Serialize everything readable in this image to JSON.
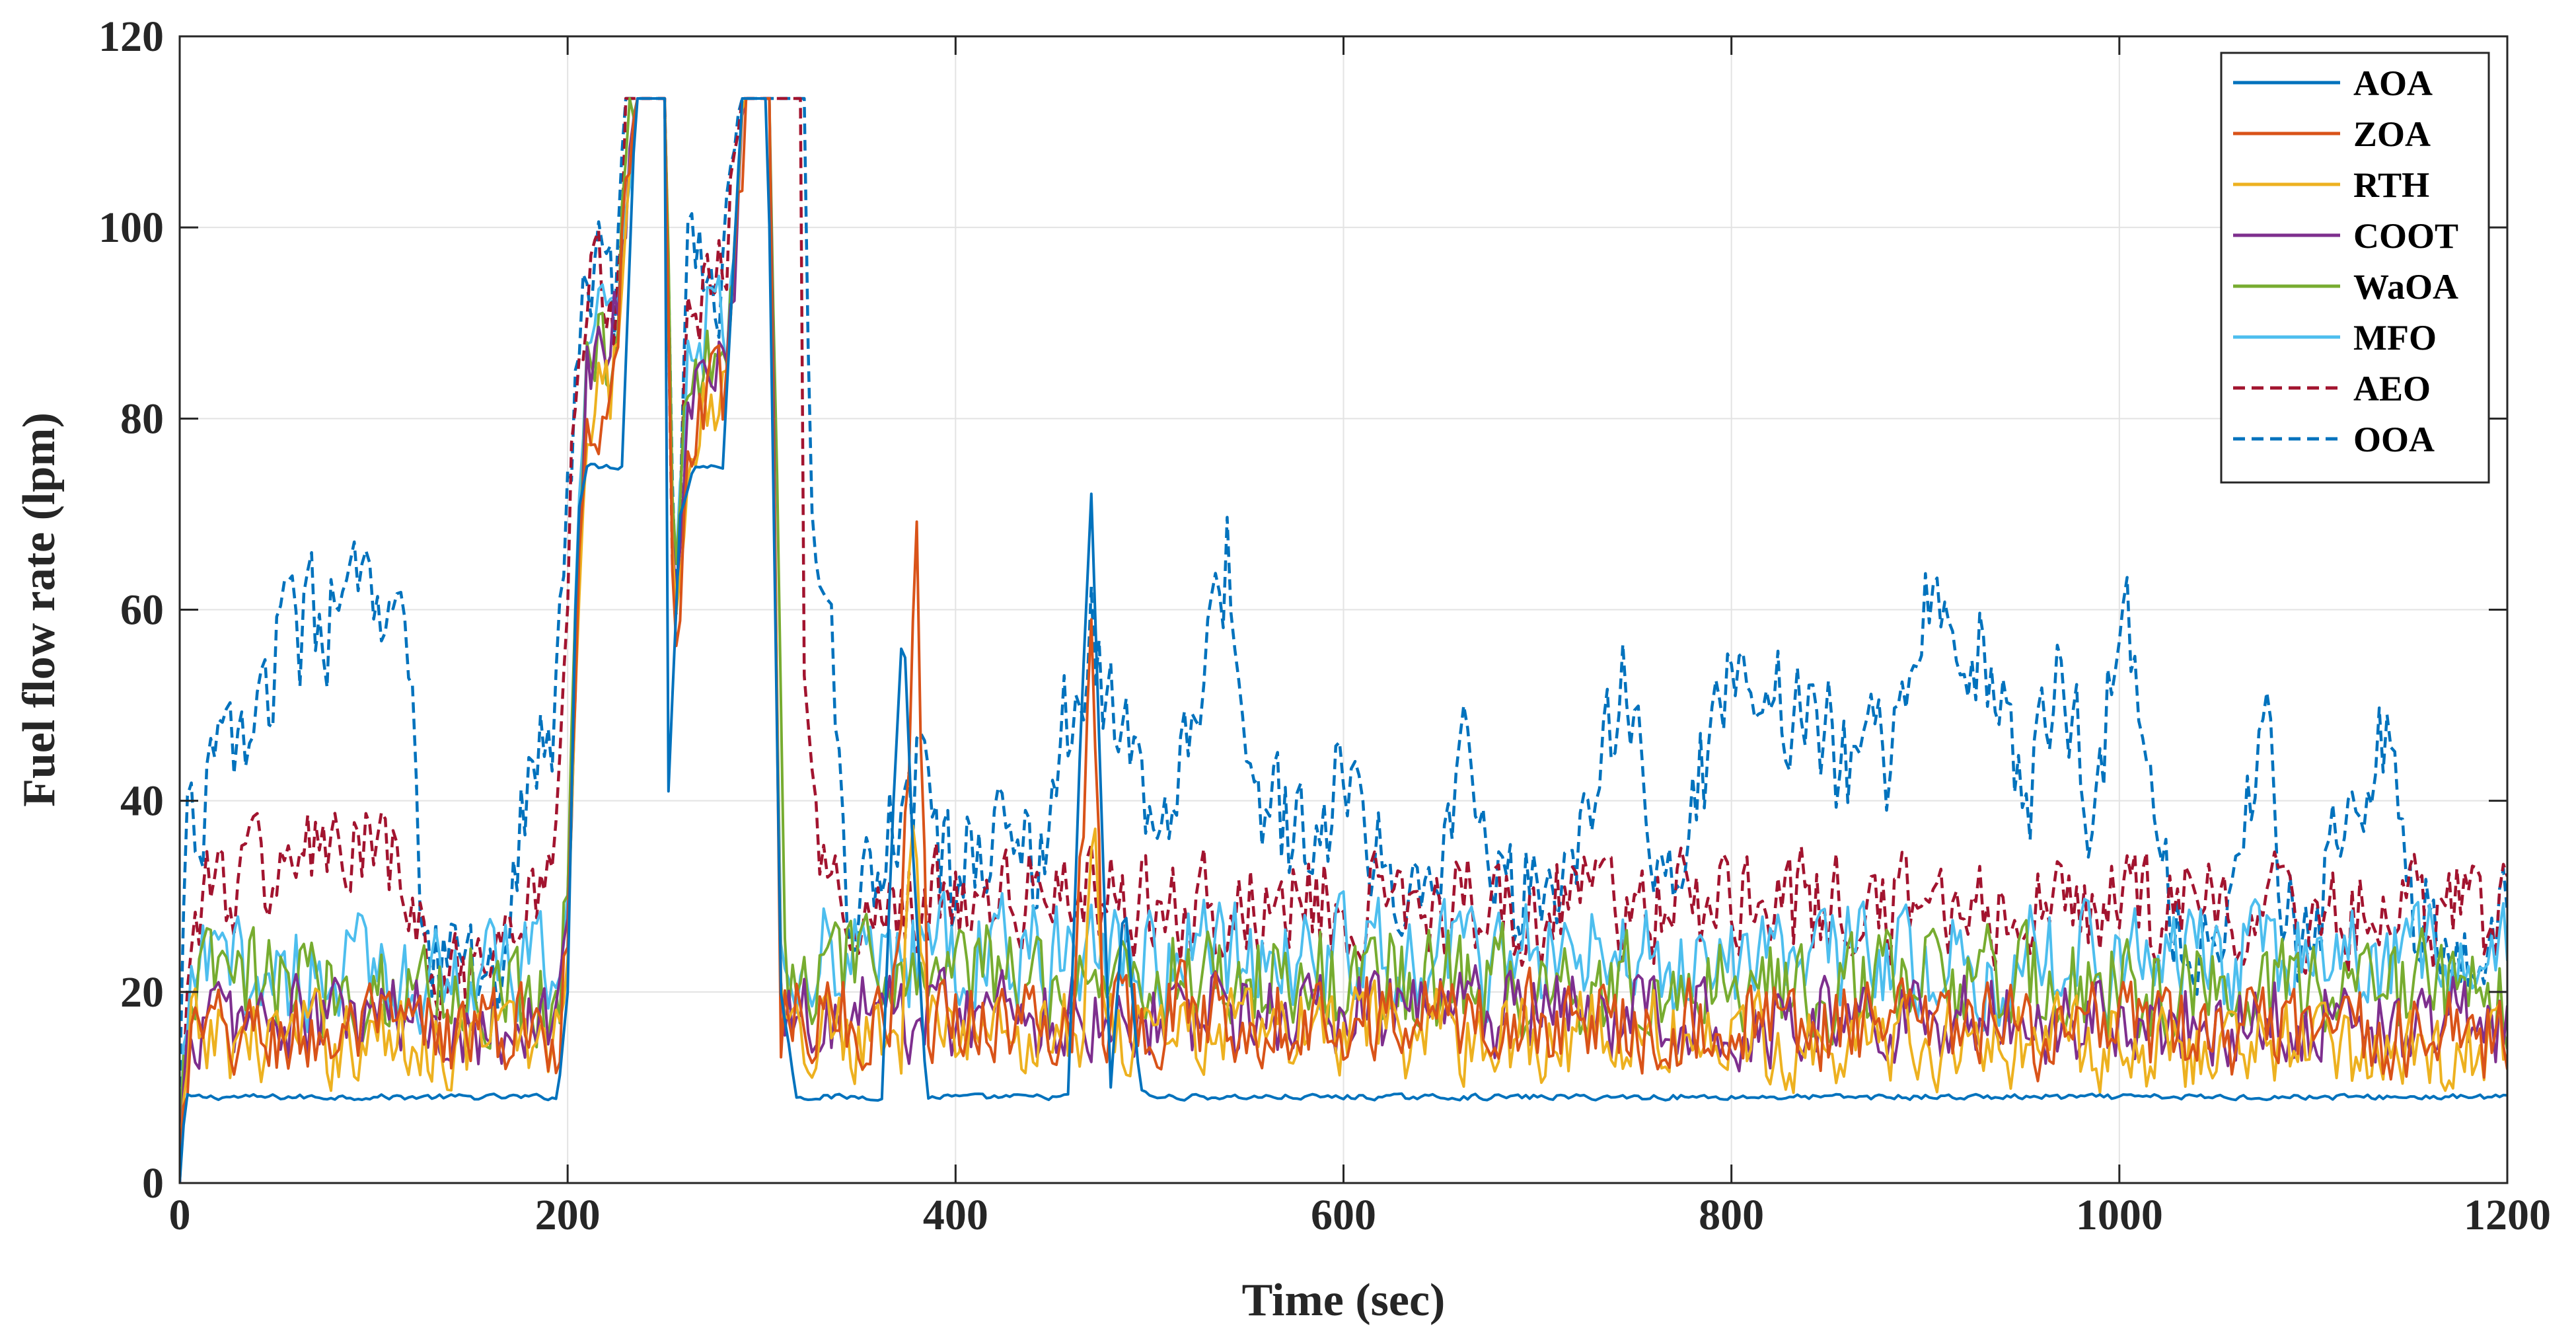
{
  "chart_data": {
    "type": "line",
    "title": "",
    "xlabel": "Time (sec)",
    "ylabel": "Fuel flow rate (lpm)",
    "xlim": [
      0,
      1200
    ],
    "ylim": [
      0,
      120
    ],
    "xticks": [
      0,
      200,
      400,
      600,
      800,
      1000,
      1200
    ],
    "yticks": [
      0,
      20,
      40,
      60,
      80,
      100,
      120
    ],
    "grid": true,
    "legend_position": "top-right",
    "series": [
      {
        "name": "AOA",
        "color": "#0072BD",
        "dash": "solid",
        "noise": 0.3,
        "points": [
          [
            0,
            0
          ],
          [
            3,
            9
          ],
          [
            195,
            9
          ],
          [
            200,
            20
          ],
          [
            205,
            70
          ],
          [
            210,
            75
          ],
          [
            228,
            75
          ],
          [
            235,
            113.5
          ],
          [
            250,
            113.5
          ],
          [
            252,
            41
          ],
          [
            258,
            70
          ],
          [
            265,
            75
          ],
          [
            280,
            75
          ],
          [
            290,
            113.5
          ],
          [
            303,
            113.5
          ],
          [
            310,
            20
          ],
          [
            318,
            9
          ],
          [
            362,
            9
          ],
          [
            368,
            40
          ],
          [
            373,
            60
          ],
          [
            378,
            35
          ],
          [
            385,
            9
          ],
          [
            458,
            9
          ],
          [
            465,
            50
          ],
          [
            470,
            72
          ],
          [
            475,
            40
          ],
          [
            480,
            10
          ],
          [
            487,
            30
          ],
          [
            495,
            10
          ],
          [
            500,
            9
          ],
          [
            1200,
            9
          ]
        ]
      },
      {
        "name": "ZOA",
        "color": "#D95319",
        "dash": "solid",
        "noise": 5,
        "points": [
          [
            0,
            2
          ],
          [
            6,
            15
          ],
          [
            195,
            16
          ],
          [
            200,
            25
          ],
          [
            205,
            60
          ],
          [
            210,
            82
          ],
          [
            222,
            82
          ],
          [
            235,
            113.5
          ],
          [
            250,
            113.5
          ],
          [
            255,
            50
          ],
          [
            262,
            75
          ],
          [
            270,
            82
          ],
          [
            282,
            82
          ],
          [
            292,
            113.5
          ],
          [
            304,
            113.5
          ],
          [
            310,
            18
          ],
          [
            365,
            16
          ],
          [
            372,
            30
          ],
          [
            380,
            65
          ],
          [
            386,
            18
          ],
          [
            460,
            16
          ],
          [
            466,
            40
          ],
          [
            470,
            62
          ],
          [
            476,
            18
          ],
          [
            1200,
            15
          ]
        ]
      },
      {
        "name": "RTH",
        "color": "#EDB120",
        "dash": "solid",
        "noise": 5,
        "points": [
          [
            0,
            2
          ],
          [
            6,
            15
          ],
          [
            195,
            15
          ],
          [
            200,
            25
          ],
          [
            205,
            60
          ],
          [
            210,
            82
          ],
          [
            222,
            82
          ],
          [
            235,
            113.5
          ],
          [
            250,
            113.5
          ],
          [
            255,
            55
          ],
          [
            262,
            78
          ],
          [
            270,
            82
          ],
          [
            282,
            82
          ],
          [
            292,
            113.5
          ],
          [
            304,
            113.5
          ],
          [
            310,
            16
          ],
          [
            372,
            16
          ],
          [
            378,
            40
          ],
          [
            385,
            16
          ],
          [
            465,
            16
          ],
          [
            472,
            40
          ],
          [
            478,
            16
          ],
          [
            1200,
            14
          ]
        ]
      },
      {
        "name": "COOT",
        "color": "#7E2F8E",
        "dash": "solid",
        "noise": 5,
        "points": [
          [
            0,
            2
          ],
          [
            6,
            17
          ],
          [
            195,
            17
          ],
          [
            200,
            28
          ],
          [
            205,
            60
          ],
          [
            210,
            85
          ],
          [
            222,
            85
          ],
          [
            235,
            113.5
          ],
          [
            250,
            113.5
          ],
          [
            255,
            58
          ],
          [
            262,
            80
          ],
          [
            270,
            85
          ],
          [
            282,
            85
          ],
          [
            292,
            113.5
          ],
          [
            304,
            113.5
          ],
          [
            310,
            18
          ],
          [
            1200,
            17
          ]
        ]
      },
      {
        "name": "WaOA",
        "color": "#77AC30",
        "dash": "solid",
        "noise": 6,
        "points": [
          [
            0,
            3
          ],
          [
            6,
            21
          ],
          [
            195,
            20
          ],
          [
            200,
            30
          ],
          [
            205,
            65
          ],
          [
            210,
            88
          ],
          [
            222,
            88
          ],
          [
            235,
            113.5
          ],
          [
            250,
            113.5
          ],
          [
            255,
            62
          ],
          [
            262,
            84
          ],
          [
            270,
            88
          ],
          [
            282,
            88
          ],
          [
            292,
            113.5
          ],
          [
            304,
            113.5
          ],
          [
            308,
            70
          ],
          [
            312,
            22
          ],
          [
            1200,
            20
          ]
        ]
      },
      {
        "name": "MFO",
        "color": "#4DBEEE",
        "dash": "solid",
        "noise": 6,
        "points": [
          [
            0,
            3
          ],
          [
            6,
            22
          ],
          [
            195,
            22
          ],
          [
            200,
            32
          ],
          [
            205,
            65
          ],
          [
            210,
            90
          ],
          [
            222,
            90
          ],
          [
            235,
            113.5
          ],
          [
            250,
            113.5
          ],
          [
            255,
            64
          ],
          [
            262,
            86
          ],
          [
            270,
            90
          ],
          [
            282,
            90
          ],
          [
            292,
            113.5
          ],
          [
            304,
            113.5
          ],
          [
            310,
            24
          ],
          [
            1200,
            23
          ]
        ]
      },
      {
        "name": "AEO",
        "color": "#A2142F",
        "dash": "dashed",
        "noise": 6,
        "points": [
          [
            0,
            5
          ],
          [
            8,
            30
          ],
          [
            50,
            33
          ],
          [
            80,
            35
          ],
          [
            110,
            33
          ],
          [
            130,
            22
          ],
          [
            160,
            18
          ],
          [
            180,
            30
          ],
          [
            195,
            38
          ],
          [
            205,
            90
          ],
          [
            215,
            95
          ],
          [
            225,
            92
          ],
          [
            230,
            113.5
          ],
          [
            250,
            113.5
          ],
          [
            255,
            60
          ],
          [
            262,
            92
          ],
          [
            280,
            95
          ],
          [
            290,
            113.5
          ],
          [
            320,
            113.5
          ],
          [
            322,
            50
          ],
          [
            330,
            30
          ],
          [
            1200,
            28
          ]
        ]
      },
      {
        "name": "OOA",
        "color": "#0072BD",
        "dash": "dashed",
        "noise": 7,
        "points": [
          [
            0,
            15
          ],
          [
            5,
            38
          ],
          [
            30,
            46
          ],
          [
            50,
            55
          ],
          [
            70,
            58
          ],
          [
            95,
            62
          ],
          [
            110,
            55
          ],
          [
            120,
            54
          ],
          [
            125,
            22
          ],
          [
            165,
            22
          ],
          [
            180,
            45
          ],
          [
            195,
            50
          ],
          [
            205,
            90
          ],
          [
            215,
            95
          ],
          [
            225,
            92
          ],
          [
            230,
            113.5
          ],
          [
            250,
            113.5
          ],
          [
            255,
            60
          ],
          [
            262,
            95
          ],
          [
            280,
            95
          ],
          [
            290,
            113.5
          ],
          [
            322,
            113.5
          ],
          [
            325,
            68
          ],
          [
            335,
            60
          ],
          [
            345,
            30
          ],
          [
            360,
            35
          ],
          [
            380,
            42
          ],
          [
            400,
            30
          ],
          [
            420,
            40
          ],
          [
            440,
            32
          ],
          [
            460,
            50
          ],
          [
            470,
            58
          ],
          [
            480,
            48
          ],
          [
            495,
            42
          ],
          [
            510,
            35
          ],
          [
            530,
            55
          ],
          [
            540,
            66
          ],
          [
            548,
            42
          ],
          [
            560,
            38
          ],
          [
            590,
            36
          ],
          [
            608,
            50
          ],
          [
            615,
            36
          ],
          [
            640,
            33
          ],
          [
            665,
            44
          ],
          [
            675,
            30
          ],
          [
            700,
            30
          ],
          [
            730,
            38
          ],
          [
            745,
            58
          ],
          [
            755,
            42
          ],
          [
            770,
            30
          ],
          [
            800,
            56
          ],
          [
            820,
            50
          ],
          [
            840,
            52
          ],
          [
            860,
            42
          ],
          [
            880,
            45
          ],
          [
            895,
            62
          ],
          [
            905,
            57
          ],
          [
            930,
            56
          ],
          [
            950,
            38
          ],
          [
            970,
            55
          ],
          [
            985,
            40
          ],
          [
            1005,
            62
          ],
          [
            1012,
            40
          ],
          [
            1030,
            28
          ],
          [
            1060,
            28
          ],
          [
            1075,
            48
          ],
          [
            1085,
            25
          ],
          [
            1100,
            28
          ],
          [
            1120,
            38
          ],
          [
            1140,
            48
          ],
          [
            1150,
            28
          ],
          [
            1180,
            27
          ],
          [
            1200,
            25
          ]
        ]
      }
    ]
  }
}
